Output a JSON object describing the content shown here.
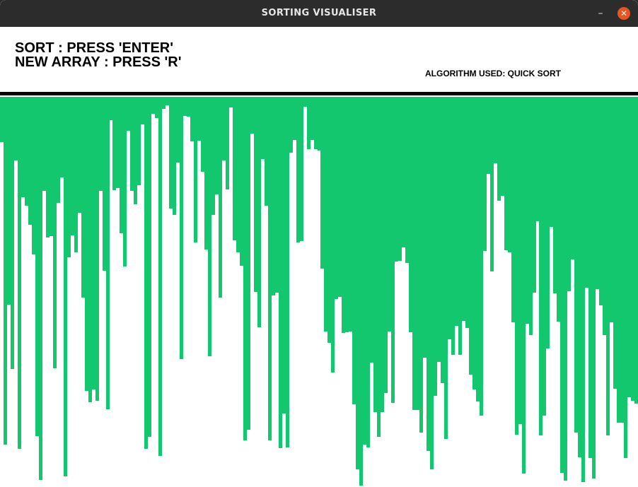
{
  "window": {
    "title": "SORTING VISUALISER",
    "minimize_glyph": "–",
    "close_glyph": "✕"
  },
  "instructions": {
    "sort": "SORT : PRESS 'ENTER'",
    "new_array": "NEW ARRAY : PRESS 'R'"
  },
  "algorithm_label": "ALGORITHM USED: QUICK SORT",
  "colors": {
    "bar": "#12c76e",
    "divider": "#000000",
    "background": "#ffffff",
    "titlebar": "#2c2c2c",
    "close_button": "#e95420"
  },
  "array": {
    "max_value": 540,
    "values": [
      63,
      481,
      288,
      377,
      88,
      487,
      139,
      151,
      177,
      218,
      470,
      530,
      130,
      195,
      193,
      376,
      147,
      112,
      525,
      222,
      192,
      215,
      160,
      278,
      407,
      423,
      405,
      421,
      130,
      241,
      432,
      32,
      129,
      126,
      189,
      235,
      47,
      130,
      149,
      122,
      38,
      487,
      471,
      23,
      29,
      497,
      17,
      12,
      155,
      163,
      91,
      363,
      26,
      27,
      62,
      202,
      61,
      104,
      211,
      359,
      163,
      135,
      278,
      88,
      128,
      15,
      199,
      215,
      234,
      475,
      461,
      51,
      270,
      319,
      86,
      151,
      475,
      275,
      271,
      486,
      438,
      485,
      77,
      60,
      202,
      200,
      14,
      72,
      60,
      72,
      74,
      238,
      325,
      340,
      382,
      280,
      277,
      327,
      326,
      325,
      426,
      516,
      538,
      481,
      485,
      368,
      436,
      471,
      436,
      410,
      325,
      424,
      228,
      227,
      208,
      230,
      326,
      433,
      433,
      465,
      361,
      490,
      516,
      414,
      367,
      396,
      473,
      336,
      357,
      317,
      357,
      310,
      320,
      384,
      405,
      422,
      441,
      213,
      107,
      242,
      92,
      144,
      137,
      212,
      215,
      312,
      468,
      453,
      521,
      314,
      330,
      271,
      172,
      469,
      441,
      348,
      180,
      272,
      311,
      520,
      531,
      269,
      225,
      465,
      499,
      533,
      264,
      500,
      528,
      266,
      289,
      330,
      469,
      312,
      404,
      451,
      451,
      500,
      416,
      421,
      425
    ]
  }
}
